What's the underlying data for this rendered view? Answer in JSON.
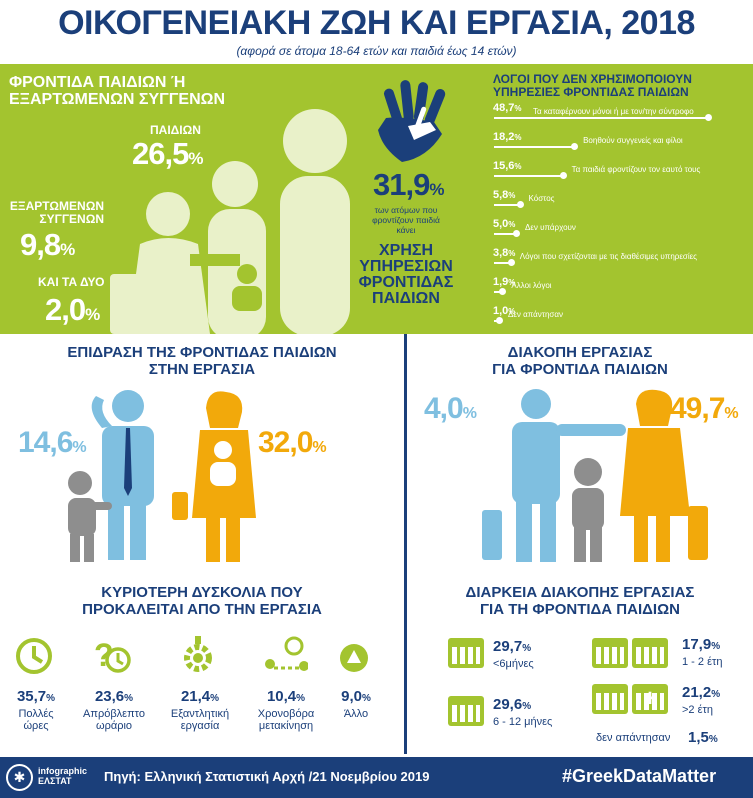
{
  "title": "ΟΙΚΟΓΕΝΕΙΑΚΗ ΖΩΗ ΚΑΙ ΕΡΓΑΣΙΑ, 2018",
  "subtitle": "(αφορά σε άτομα 18-64 ετών και παιδιά έως 14 ετών)",
  "care": {
    "heading_line1": "ΦΡΟΝΤΙΔΑ ΠΑΙΔΙΩΝ Ή",
    "heading_line2": "ΕΞΑΡΤΩΜΕΝΩΝ ΣΥΓΓΕΝΩΝ",
    "children_label": "ΠΑΙΔΙΩΝ",
    "children_value": "26,5",
    "relatives_label_1": "ΕΞΑΡΤΩΜΕΝΩΝ",
    "relatives_label_2": "ΣΥΓΓΕΝΩΝ",
    "relatives_value": "9,8",
    "both_label": "ΚΑΙ ΤΑ ΔΥΟ",
    "both_value": "2,0",
    "percent_sign": "%"
  },
  "usage": {
    "value": "31,9",
    "desc_line1": "των ατόμων που",
    "desc_line2": "φροντίζουν παιδιά",
    "desc_line3": "κάνει",
    "label_line1": "ΧΡΗΣΗ",
    "label_line2": "ΥΠΗΡΕΣΙΩΝ",
    "label_line3": "ΦΡΟΝΤΙΔΑΣ",
    "label_line4": "ΠΑΙΔΙΩΝ"
  },
  "reasons": {
    "heading_line1": "ΛΟΓΟΙ ΠΟΥ ΔΕΝ ΧΡΗΣΙΜΟΠΟΙΟΥΝ",
    "heading_line2": "ΥΠΗΡΕΣΙΕΣ ΦΡΟΝΤΙΔΑΣ ΠΑΙΔΙΩΝ",
    "items": [
      {
        "value": "48,7",
        "pct": 48.7,
        "label": "Τα καταφέρνουν μόνοι ή με τον/την σύντροφο"
      },
      {
        "value": "18,2",
        "pct": 18.2,
        "label": "Βοηθούν συγγενείς και φίλοι"
      },
      {
        "value": "15,6",
        "pct": 15.6,
        "label": "Τα παιδιά φροντίζουν τον εαυτό τους"
      },
      {
        "value": "5,8",
        "pct": 5.8,
        "label": "Κόστος"
      },
      {
        "value": "5,0",
        "pct": 5.0,
        "label": "Δεν υπάρχουν"
      },
      {
        "value": "3,8",
        "pct": 3.8,
        "label": "Λόγοι που σχετίζονται με τις διαθέσιμες υπηρεσίες"
      },
      {
        "value": "1,9",
        "pct": 1.9,
        "label": "Άλλοι λόγοι"
      },
      {
        "value": "1,0",
        "pct": 1.0,
        "label": "Δεν απάντησαν"
      }
    ]
  },
  "impact": {
    "heading_line1": "ΕΠΙΔΡΑΣΗ ΤΗΣ ΦΡΟΝΤΙΔΑΣ ΠΑΙΔΙΩΝ",
    "heading_line2": "ΣΤΗΝ ΕΡΓΑΣΙΑ",
    "men_value": "14,6",
    "women_value": "32,0"
  },
  "interruption": {
    "heading_line1": "ΔΙΑΚΟΠΗ ΕΡΓΑΣΙΑΣ",
    "heading_line2": "ΓΙΑ ΦΡΟΝΤΙΔΑ ΠΑΙΔΙΩΝ",
    "men_value": "4,0",
    "women_value": "49,7"
  },
  "difficulty": {
    "heading_line1": "ΚΥΡΙΟΤΕΡΗ ΔΥΣΚΟΛΙΑ ΠΟΥ",
    "heading_line2": "ΠΡΟΚΑΛΕΙΤΑΙ ΑΠΟ ΤΗΝ ΕΡΓΑΣΙΑ",
    "items": [
      {
        "value": "35,7",
        "line1": "Πολλές",
        "line2": "ώρες",
        "icon": "clock-icon"
      },
      {
        "value": "23,6",
        "line1": "Απρόβλεπτο",
        "line2": "ωράριο",
        "icon": "question-clock-icon"
      },
      {
        "value": "21,4",
        "line1": "Εξαντλητική",
        "line2": "εργασία",
        "icon": "gear-icon"
      },
      {
        "value": "10,4",
        "line1": "Χρονοβόρα",
        "line2": "μετακίνηση",
        "icon": "route-icon"
      },
      {
        "value": "9,0",
        "line1": "Άλλο",
        "line2": "",
        "icon": "triangle-icon"
      }
    ]
  },
  "duration": {
    "heading_line1": "ΔΙΑΡΚΕΙΑ ΔΙΑΚΟΠΗΣ ΕΡΓΑΣΙΑΣ",
    "heading_line2": "ΓΙΑ ΤΗ ΦΡΟΝΤΙΔΑ ΠΑΙΔΙΩΝ",
    "items": [
      {
        "value": "29,7",
        "label": "<6μήνες"
      },
      {
        "value": "29,6",
        "label": "6 - 12 μήνες"
      },
      {
        "value": "17,9",
        "label": "1 - 2 έτη"
      },
      {
        "value": "21,2",
        "label": ">2 έτη"
      }
    ],
    "no_answer_label": "δεν απάντησαν",
    "no_answer_value": "1,5"
  },
  "footer": {
    "logo_line1": "infographic",
    "logo_line2": "ΕΛΣΤΑΤ",
    "source": "Πηγή: Ελληνική Στατιστική Αρχή /21 Νοεμβρίου 2019",
    "hashtag": "#GreekDataMatter"
  },
  "colors": {
    "navy": "#1b3f7a",
    "green": "#a3c42f",
    "blue": "#7fbfe0",
    "orange": "#f2a90b",
    "grey": "#8e8e8e"
  }
}
